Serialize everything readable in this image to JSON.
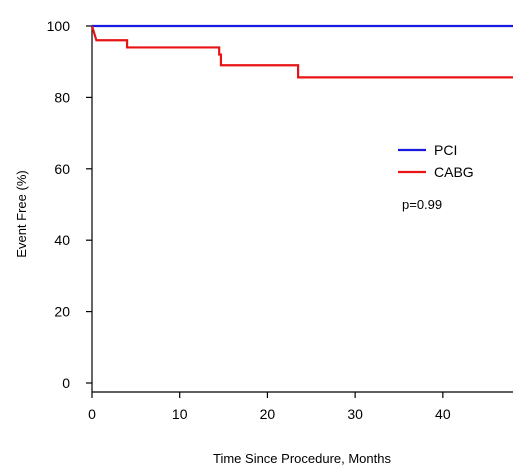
{
  "chart_data": {
    "type": "line",
    "title": "",
    "xlabel": "Time Since Procedure, Months",
    "ylabel": "Event Free (%)",
    "xlim": [
      0,
      48
    ],
    "ylim": [
      0,
      100
    ],
    "x_ticks": [
      0,
      10,
      20,
      30,
      40
    ],
    "y_ticks": [
      0,
      20,
      40,
      60,
      80,
      100
    ],
    "grid": false,
    "legend_position": "right-middle",
    "annotations": [
      "p=0.99"
    ],
    "series": [
      {
        "name": "PCI",
        "color": "#1a1adf",
        "step": true,
        "points": [
          [
            0,
            100
          ],
          [
            48,
            100
          ]
        ]
      },
      {
        "name": "CABG",
        "color": "#e81414",
        "step": true,
        "points": [
          [
            0,
            100
          ],
          [
            0.5,
            96
          ],
          [
            4,
            96
          ],
          [
            4,
            94
          ],
          [
            14.5,
            94
          ],
          [
            14.5,
            92
          ],
          [
            14.7,
            92
          ],
          [
            14.7,
            89
          ],
          [
            23.5,
            89
          ],
          [
            23.5,
            85.6
          ],
          [
            48,
            85.6
          ]
        ]
      }
    ]
  }
}
